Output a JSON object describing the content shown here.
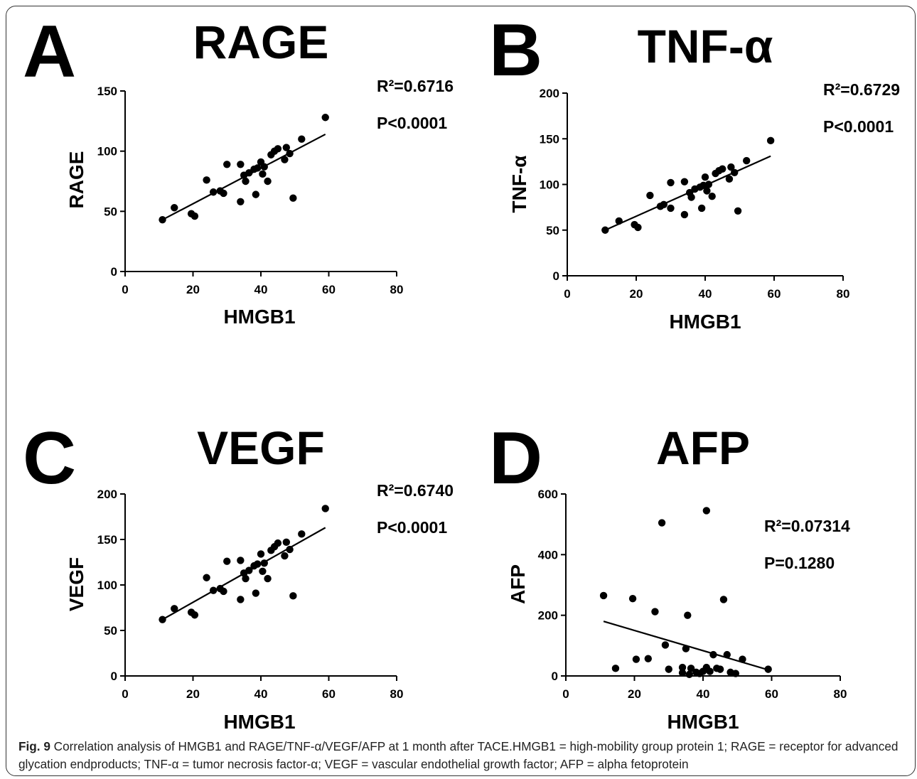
{
  "caption": {
    "label": "Fig. 9",
    "text": "Correlation analysis of HMGB1 and RAGE/TNF-α/VEGF/AFP at 1 month after TACE.HMGB1 = high-mobility group protein 1; RAGE = receptor for advanced glycation endproducts; TNF-α = tumor necrosis factor-α; VEGF = vascular endothelial growth factor; AFP = alpha fetoprotein"
  },
  "colors": {
    "points": "#000000",
    "line": "#000000",
    "frame": "#333333"
  },
  "chart_data": [
    {
      "panel": "A",
      "type": "scatter",
      "title": "RAGE",
      "xlabel": "HMGB1",
      "ylabel": "RAGE",
      "xlim": [
        0,
        80
      ],
      "ylim": [
        0,
        150
      ],
      "xticks": [
        0,
        20,
        40,
        60,
        80
      ],
      "yticks": [
        0,
        50,
        100,
        150
      ],
      "r2": "R²=0.6716",
      "p": "P<0.0001",
      "fit": {
        "x": [
          11,
          59
        ],
        "y": [
          43,
          114
        ]
      },
      "points": [
        [
          11,
          43
        ],
        [
          14.5,
          53
        ],
        [
          19.5,
          48
        ],
        [
          20.5,
          46
        ],
        [
          24,
          76
        ],
        [
          26,
          66
        ],
        [
          28,
          67
        ],
        [
          29,
          65
        ],
        [
          30,
          89
        ],
        [
          34,
          58
        ],
        [
          34,
          89
        ],
        [
          35,
          80
        ],
        [
          35.5,
          75
        ],
        [
          36.5,
          82
        ],
        [
          38,
          85
        ],
        [
          38.5,
          64
        ],
        [
          39,
          86
        ],
        [
          40,
          91
        ],
        [
          40.5,
          81
        ],
        [
          41,
          87
        ],
        [
          42,
          75
        ],
        [
          43,
          97
        ],
        [
          44,
          100
        ],
        [
          45,
          102
        ],
        [
          47,
          93
        ],
        [
          47.5,
          103
        ],
        [
          48.5,
          98
        ],
        [
          49.5,
          61
        ],
        [
          52,
          110
        ],
        [
          59,
          128
        ]
      ]
    },
    {
      "panel": "B",
      "type": "scatter",
      "title": "TNF-α",
      "xlabel": "HMGB1",
      "ylabel": "TNF-α",
      "xlim": [
        0,
        80
      ],
      "ylim": [
        0,
        200
      ],
      "xticks": [
        0,
        20,
        40,
        60,
        80
      ],
      "yticks": [
        0,
        50,
        100,
        150,
        200
      ],
      "r2": "R²=0.6729",
      "p": "P<0.0001",
      "fit": {
        "x": [
          11,
          59
        ],
        "y": [
          50,
          131
        ]
      },
      "points": [
        [
          11,
          50
        ],
        [
          15,
          60
        ],
        [
          19.5,
          56
        ],
        [
          20.5,
          53
        ],
        [
          24,
          88
        ],
        [
          27,
          76
        ],
        [
          28,
          78
        ],
        [
          30,
          74
        ],
        [
          30,
          102
        ],
        [
          34,
          67
        ],
        [
          34,
          103
        ],
        [
          35.5,
          91
        ],
        [
          36,
          86
        ],
        [
          37,
          95
        ],
        [
          38.5,
          97
        ],
        [
          39,
          74
        ],
        [
          39.5,
          99
        ],
        [
          40,
          108
        ],
        [
          40.5,
          93
        ],
        [
          41,
          100
        ],
        [
          42,
          87
        ],
        [
          43,
          112
        ],
        [
          44,
          115
        ],
        [
          45,
          117
        ],
        [
          47,
          106
        ],
        [
          47.5,
          119
        ],
        [
          48.5,
          113
        ],
        [
          49.5,
          71
        ],
        [
          52,
          126
        ],
        [
          59,
          148
        ]
      ]
    },
    {
      "panel": "C",
      "type": "scatter",
      "title": "VEGF",
      "xlabel": "HMGB1",
      "ylabel": "VEGF",
      "xlim": [
        0,
        80
      ],
      "ylim": [
        0,
        200
      ],
      "xticks": [
        0,
        20,
        40,
        60,
        80
      ],
      "yticks": [
        0,
        50,
        100,
        150,
        200
      ],
      "r2": "R²=0.6740",
      "p": "P<0.0001",
      "fit": {
        "x": [
          11,
          59
        ],
        "y": [
          62,
          163
        ]
      },
      "points": [
        [
          11,
          62
        ],
        [
          14.5,
          74
        ],
        [
          19.5,
          70
        ],
        [
          20.5,
          67
        ],
        [
          24,
          108
        ],
        [
          26,
          94
        ],
        [
          28,
          96
        ],
        [
          29,
          93
        ],
        [
          30,
          126
        ],
        [
          34,
          84
        ],
        [
          34,
          127
        ],
        [
          35,
          113
        ],
        [
          35.5,
          107
        ],
        [
          36.5,
          116
        ],
        [
          38,
          121
        ],
        [
          38.5,
          91
        ],
        [
          39,
          123
        ],
        [
          40,
          134
        ],
        [
          40.5,
          115
        ],
        [
          41,
          124
        ],
        [
          42,
          107
        ],
        [
          43,
          138
        ],
        [
          44,
          142
        ],
        [
          45,
          146
        ],
        [
          47,
          132
        ],
        [
          47.5,
          147
        ],
        [
          48.5,
          139
        ],
        [
          49.5,
          88
        ],
        [
          52,
          156
        ],
        [
          59,
          184
        ]
      ]
    },
    {
      "panel": "D",
      "type": "scatter",
      "title": "AFP",
      "xlabel": "HMGB1",
      "ylabel": "AFP",
      "xlim": [
        0,
        80
      ],
      "ylim": [
        0,
        600
      ],
      "xticks": [
        0,
        20,
        40,
        60,
        80
      ],
      "yticks": [
        0,
        200,
        400,
        600
      ],
      "r2": "R²=0.07314",
      "p": "P=0.1280",
      "fit": {
        "x": [
          11,
          59
        ],
        "y": [
          180,
          20
        ]
      },
      "points": [
        [
          11,
          265
        ],
        [
          14.5,
          25
        ],
        [
          19.5,
          255
        ],
        [
          20.5,
          55
        ],
        [
          24,
          57
        ],
        [
          26,
          212
        ],
        [
          28,
          505
        ],
        [
          29,
          102
        ],
        [
          30,
          22
        ],
        [
          34,
          28
        ],
        [
          34,
          10
        ],
        [
          35,
          90
        ],
        [
          35.5,
          200
        ],
        [
          36,
          5
        ],
        [
          36.5,
          25
        ],
        [
          38,
          12
        ],
        [
          39,
          8
        ],
        [
          40,
          15
        ],
        [
          41,
          545
        ],
        [
          41,
          28
        ],
        [
          42,
          15
        ],
        [
          43,
          70
        ],
        [
          44,
          25
        ],
        [
          45,
          22
        ],
        [
          46,
          252
        ],
        [
          47,
          70
        ],
        [
          48,
          12
        ],
        [
          49.5,
          8
        ],
        [
          51.5,
          55
        ],
        [
          59,
          22
        ]
      ]
    }
  ]
}
